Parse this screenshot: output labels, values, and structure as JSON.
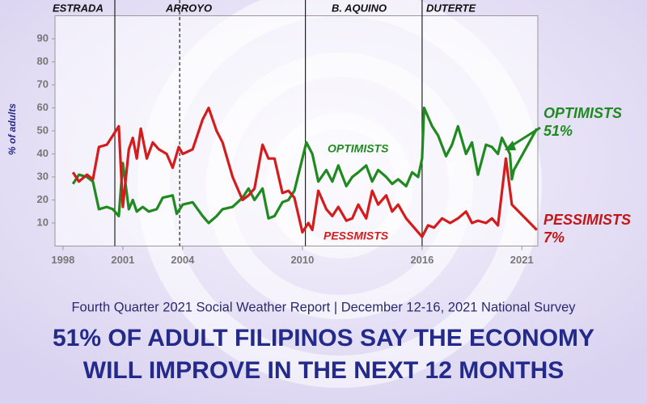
{
  "chart_data": {
    "type": "line",
    "subtitle": "Fourth Quarter 2021 Social Weather Report | December 12-16, 2021 National Survey",
    "headline": [
      "51% OF ADULT FILIPINOS SAY THE ECONOMY",
      "WILL IMPROVE IN THE NEXT 12 MONTHS"
    ],
    "y_label": "% of adults",
    "xlim": [
      1997.6,
      2021.8
    ],
    "xticks": [
      1998,
      2001,
      2004,
      2010,
      2016,
      2021
    ],
    "ylim": [
      0,
      100
    ],
    "yticks": [
      10,
      20,
      30,
      40,
      50,
      60,
      70,
      80,
      90
    ],
    "periods": [
      {
        "name": "ESTRADA",
        "start": 1997.6,
        "dashed": false
      },
      {
        "name": "ARROYO",
        "start": 2000.6,
        "dashed": false
      },
      {
        "name": "B. AQUINO",
        "start": 2010.15,
        "dashed": false
      },
      {
        "name": "DUTERTE",
        "start": 2016.0,
        "dashed": false
      }
    ],
    "dividers": [
      {
        "x": 2000.6,
        "dashed": false
      },
      {
        "x": 2003.85,
        "dashed": true
      },
      {
        "x": 2010.15,
        "dashed": false
      },
      {
        "x": 2016.0,
        "dashed": false
      }
    ],
    "series": [
      {
        "name": "OPTIMISTS",
        "end_label": [
          "OPTIMISTS",
          "51%"
        ],
        "color": "#1f8a1f",
        "x": [
          1998.5,
          1998.8,
          1999.2,
          1999.5,
          1999.8,
          2000.2,
          2000.5,
          2000.8,
          2001.0,
          2001.3,
          2001.5,
          2001.7,
          2002.0,
          2002.3,
          2002.7,
          2003.0,
          2003.5,
          2003.7,
          2004.0,
          2004.5,
          2005.0,
          2005.3,
          2005.7,
          2006.0,
          2006.5,
          2007.0,
          2007.3,
          2007.6,
          2008.0,
          2008.3,
          2008.6,
          2009.0,
          2009.3,
          2009.6,
          2010.2,
          2010.5,
          2010.8,
          2011.2,
          2011.5,
          2011.8,
          2012.2,
          2012.5,
          2012.8,
          2013.2,
          2013.5,
          2013.8,
          2014.2,
          2014.5,
          2014.8,
          2015.2,
          2015.5,
          2015.8,
          2016.0,
          2016.1,
          2016.5,
          2016.8,
          2017.2,
          2017.5,
          2017.8,
          2018.2,
          2018.5,
          2018.8,
          2019.2,
          2019.5,
          2019.8,
          2020.0,
          2020.4,
          2020.5,
          2020.6,
          2021.75
        ],
        "values": [
          27,
          31,
          30,
          28,
          16,
          17,
          16,
          13,
          36,
          16,
          20,
          15,
          17,
          15,
          16,
          21,
          22,
          14,
          18,
          19,
          13,
          10,
          13,
          16,
          17,
          21,
          25,
          20,
          25,
          12,
          13,
          19,
          20,
          24,
          45,
          40,
          28,
          33,
          28,
          35,
          26,
          30,
          32,
          35,
          28,
          33,
          30,
          27,
          29,
          26,
          32,
          30,
          38,
          60,
          52,
          48,
          39,
          44,
          52,
          40,
          45,
          31,
          44,
          43,
          40,
          47,
          40,
          29,
          33,
          51
        ]
      },
      {
        "name": "PESSMISTS",
        "end_label": [
          "PESSIMISTS",
          "7%"
        ],
        "color": "#d41c1c",
        "x": [
          1998.5,
          1998.8,
          1999.2,
          1999.5,
          1999.8,
          2000.2,
          2000.5,
          2000.8,
          2001.0,
          2001.3,
          2001.5,
          2001.7,
          2001.9,
          2002.2,
          2002.5,
          2002.8,
          2003.2,
          2003.5,
          2003.8,
          2004.0,
          2004.5,
          2005.0,
          2005.3,
          2005.7,
          2006.0,
          2006.5,
          2007.0,
          2007.3,
          2007.6,
          2008.0,
          2008.3,
          2008.6,
          2009.0,
          2009.3,
          2009.6,
          2010.0,
          2010.3,
          2010.5,
          2010.8,
          2011.2,
          2011.5,
          2011.8,
          2012.2,
          2012.5,
          2012.8,
          2013.2,
          2013.5,
          2013.8,
          2014.2,
          2014.5,
          2014.8,
          2015.2,
          2015.5,
          2015.8,
          2016.0,
          2016.3,
          2016.6,
          2017.0,
          2017.4,
          2017.8,
          2018.2,
          2018.5,
          2018.8,
          2019.2,
          2019.5,
          2019.8,
          2020.2,
          2020.5,
          2021.75
        ],
        "values": [
          32,
          28,
          31,
          29,
          43,
          44,
          48,
          52,
          17,
          42,
          47,
          38,
          51,
          38,
          45,
          42,
          40,
          34,
          43,
          40,
          42,
          55,
          60,
          50,
          45,
          30,
          20,
          22,
          25,
          44,
          38,
          38,
          23,
          24,
          21,
          6,
          10,
          7,
          24,
          16,
          13,
          17,
          11,
          12,
          18,
          12,
          24,
          18,
          22,
          15,
          18,
          12,
          9,
          6,
          4,
          9,
          8,
          12,
          10,
          12,
          15,
          10,
          11,
          10,
          12,
          9,
          38,
          18,
          7
        ]
      }
    ]
  }
}
